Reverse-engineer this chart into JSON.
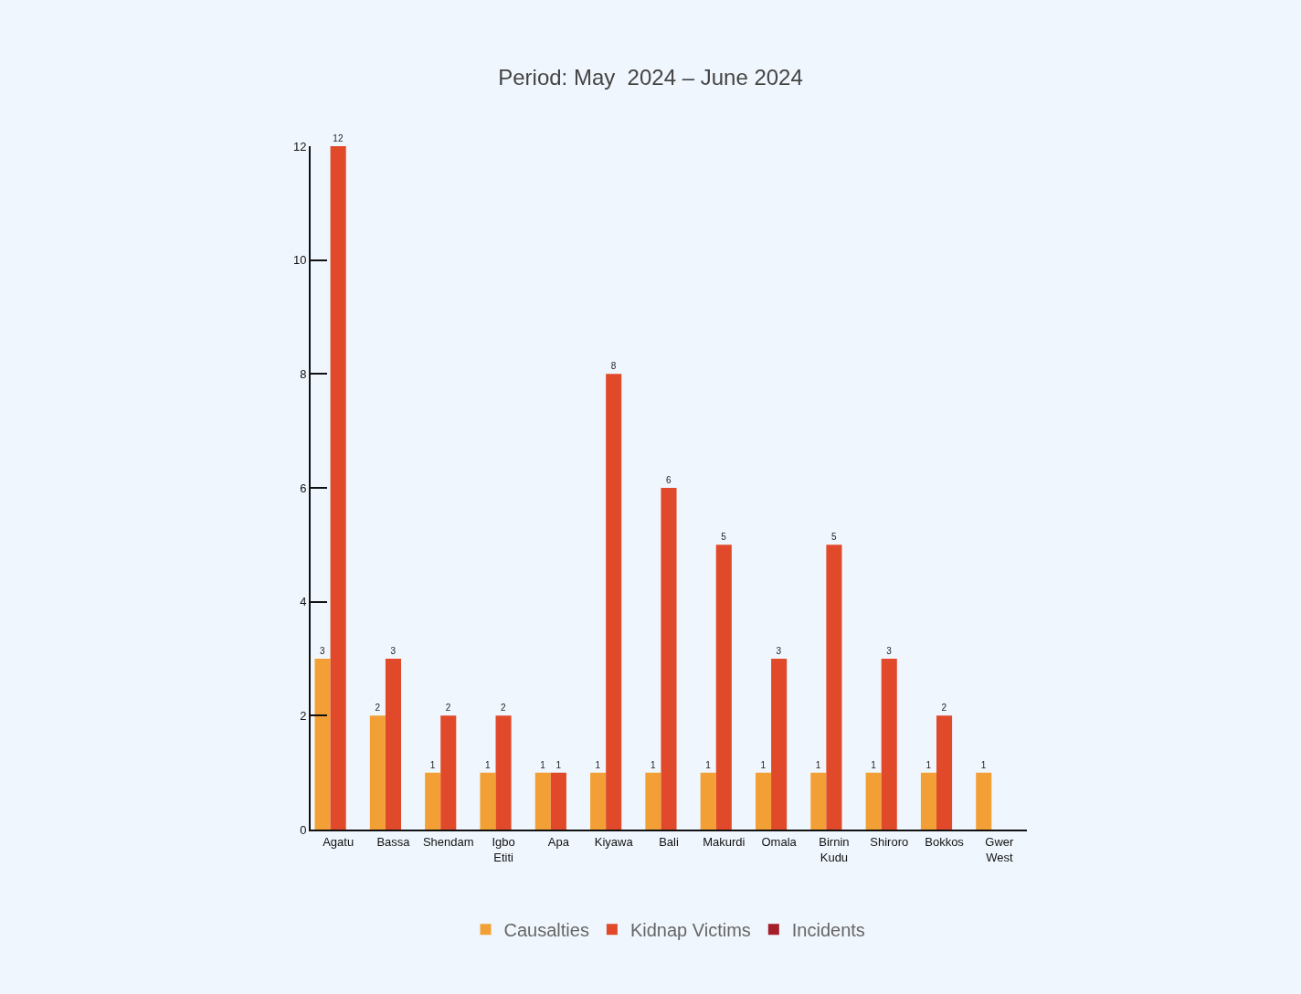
{
  "chart_data": {
    "type": "bar",
    "title": "Period: May  2024 – June 2024",
    "categories": [
      "Agatu",
      "Bassa",
      "Shendam",
      "Igbo Etiti",
      "Apa",
      "Kiyawa",
      "Bali",
      "Makurdi",
      "Omala",
      "Birnin Kudu",
      "Shiroro",
      "Bokkos",
      "Gwer West"
    ],
    "series": [
      {
        "name": "Causalties",
        "color": "#f2a035",
        "values": [
          3,
          2,
          1,
          1,
          1,
          1,
          1,
          1,
          1,
          1,
          1,
          1,
          1
        ]
      },
      {
        "name": "Kidnap Victims",
        "color": "#e04a2a",
        "values": [
          12,
          3,
          2,
          2,
          1,
          8,
          6,
          5,
          3,
          5,
          3,
          2,
          null
        ]
      },
      {
        "name": "Incidents",
        "color": "#a51f2a",
        "values": [
          null,
          null,
          null,
          null,
          null,
          null,
          null,
          null,
          null,
          null,
          null,
          null,
          null
        ]
      }
    ],
    "ylim": [
      0,
      12
    ],
    "yticks": [
      0,
      2,
      4,
      6,
      8,
      10,
      12
    ],
    "grid": false,
    "legend": "bottom",
    "data_labels": true
  }
}
